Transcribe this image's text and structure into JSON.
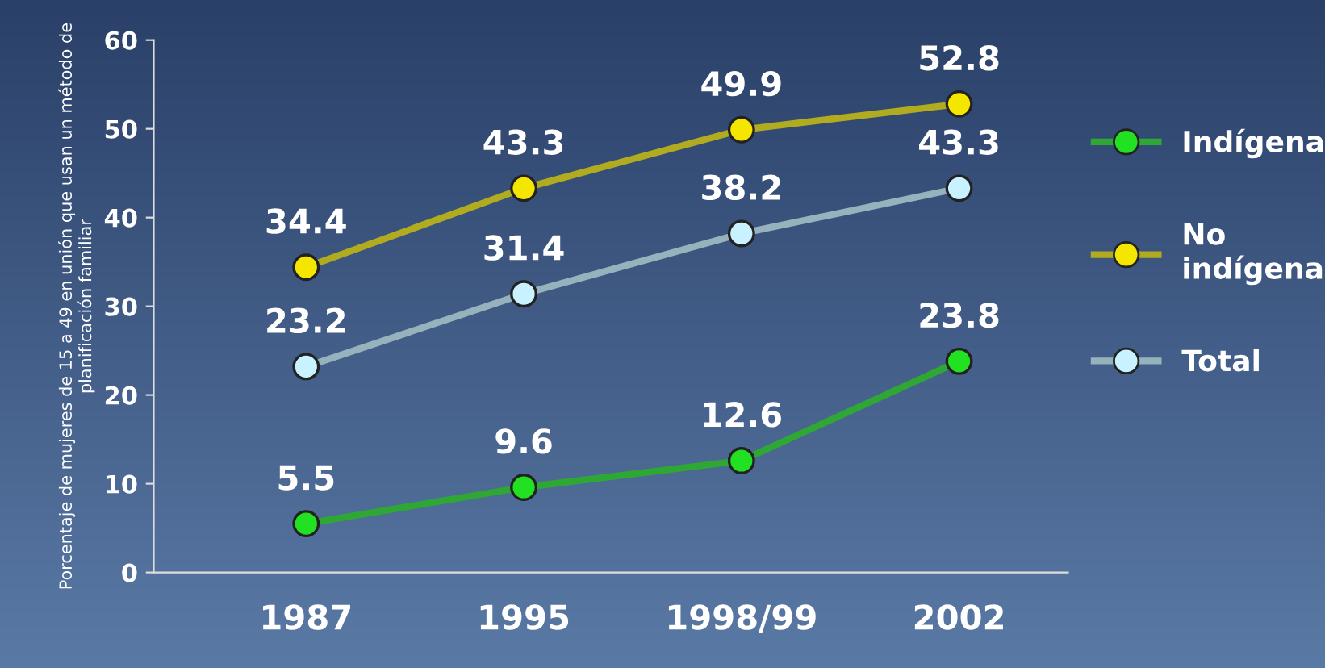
{
  "chart_data": {
    "type": "line",
    "ylabel": "Porcentaje de mujeres de 15 a 49 en unión que usan un método de\nplanificación familiar",
    "categories": [
      "1987",
      "1995",
      "1998/99",
      "2002"
    ],
    "ylim": [
      0,
      60
    ],
    "yticks": [
      0,
      10,
      20,
      30,
      40,
      50,
      60
    ],
    "series": [
      {
        "name": "Indígena",
        "color": "#22e022",
        "values": [
          5.5,
          9.6,
          12.6,
          23.8
        ]
      },
      {
        "name": "No\nindígena",
        "color": "#f5e600",
        "values": [
          34.4,
          43.3,
          49.9,
          52.8
        ]
      },
      {
        "name": "Total",
        "color": "#c8f2ff",
        "values": [
          23.2,
          31.4,
          38.2,
          43.3
        ]
      }
    ],
    "marker": "circle",
    "line_style": "solid",
    "data_labels": true,
    "legend": "right",
    "grid": false
  }
}
